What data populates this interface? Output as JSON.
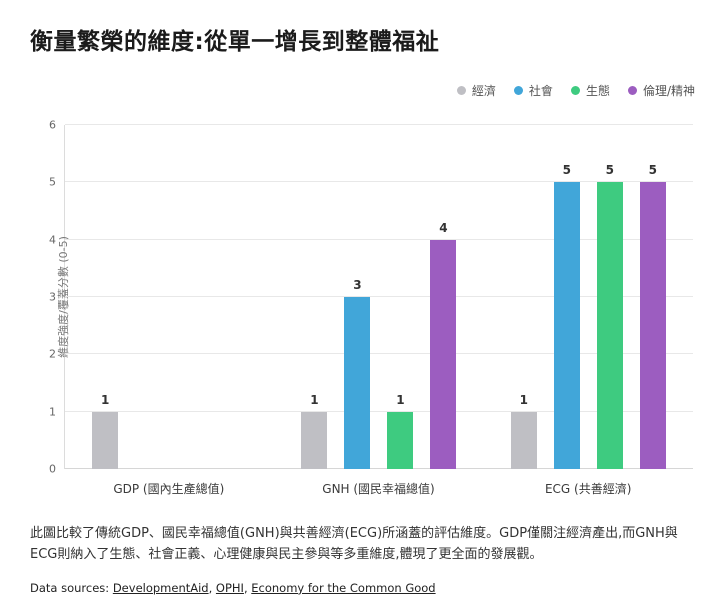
{
  "page": {
    "title": "衡量繁榮的維度:從單一增長到整體福祉",
    "caption": "此圖比較了傳統GDP、國民幸福總值(GNH)與共善經濟(ECG)所涵蓋的評估維度。GDP僅關注經濟產出,而GNH與ECG則納入了生態、社會正義、心理健康與民主參與等多重維度,體現了更全面的發展觀。",
    "sources_label": "Data sources: ",
    "sources": [
      "DevelopmentAid",
      "OPHI",
      "Economy for the Common Good"
    ]
  },
  "chart_data": {
    "type": "bar",
    "title": "衡量繁榮的維度:從單一增長到整體福祉",
    "categories": [
      "GDP (國內生產總值)",
      "GNH (國民幸福總值)",
      "ECG (共善經濟)"
    ],
    "series": [
      {
        "name": "經濟",
        "color": "#bfbfc4",
        "values": [
          1,
          1,
          1
        ]
      },
      {
        "name": "社會",
        "color": "#41a6d9",
        "values": [
          null,
          3,
          5
        ]
      },
      {
        "name": "生態",
        "color": "#3ecb80",
        "values": [
          null,
          1,
          5
        ]
      },
      {
        "name": "倫理/精神",
        "color": "#9c5dc0",
        "values": [
          null,
          4,
          5
        ]
      }
    ],
    "ylabel": "維度強度/覆蓋分數 (0-5)",
    "ylim": [
      0,
      6
    ],
    "yticks": [
      0,
      1,
      2,
      3,
      4,
      5,
      6
    ],
    "grid": true,
    "legend_position": "top-right",
    "colors": {
      "gridline": "#e8e8e8",
      "axis": "#d6d6d6"
    }
  }
}
